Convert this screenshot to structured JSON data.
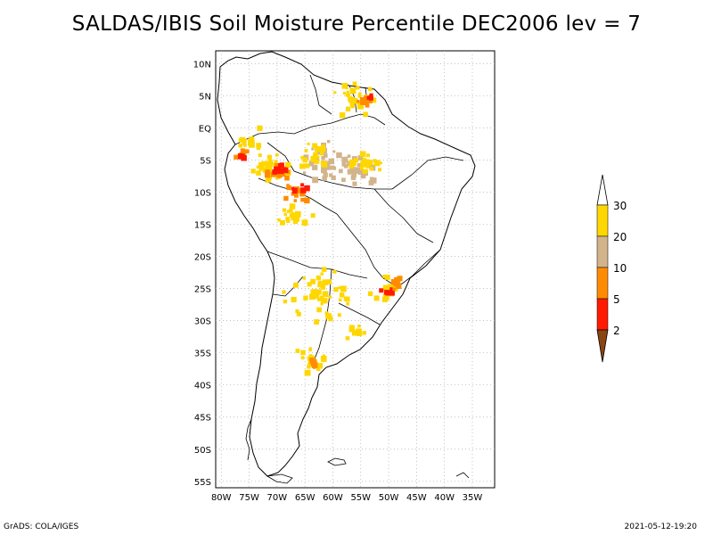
{
  "title": "SALDAS/IBIS Soil Moisture Percentile DEC2006 lev = 7",
  "axes": {
    "lon_labels": [
      "80W",
      "75W",
      "70W",
      "65W",
      "60W",
      "55W",
      "50W",
      "45W",
      "40W",
      "35W"
    ],
    "lon_values": [
      -80,
      -75,
      -70,
      -65,
      -60,
      -55,
      -50,
      -45,
      -40,
      -35
    ],
    "lat_labels": [
      "10N",
      "5N",
      "EQ",
      "5S",
      "10S",
      "15S",
      "20S",
      "25S",
      "30S",
      "35S",
      "40S",
      "45S",
      "50S",
      "55S"
    ],
    "lat_values": [
      10,
      5,
      0,
      -5,
      -10,
      -15,
      -20,
      -25,
      -30,
      -35,
      -40,
      -45,
      -50,
      -55
    ],
    "lon_range": [
      -81,
      -31
    ],
    "lat_range": [
      12,
      -56
    ],
    "grid": true
  },
  "legend": {
    "labels": [
      "30",
      "20",
      "10",
      "5",
      "2"
    ],
    "colors": [
      "#ffd700",
      "#d2b48c",
      "#ff8c00",
      "#ff1a00",
      "#8b4513"
    ],
    "top_color": "#ffffff"
  },
  "footer": {
    "left": "GrADS: COLA/IGES",
    "right": "2021-05-12-19:20"
  }
}
